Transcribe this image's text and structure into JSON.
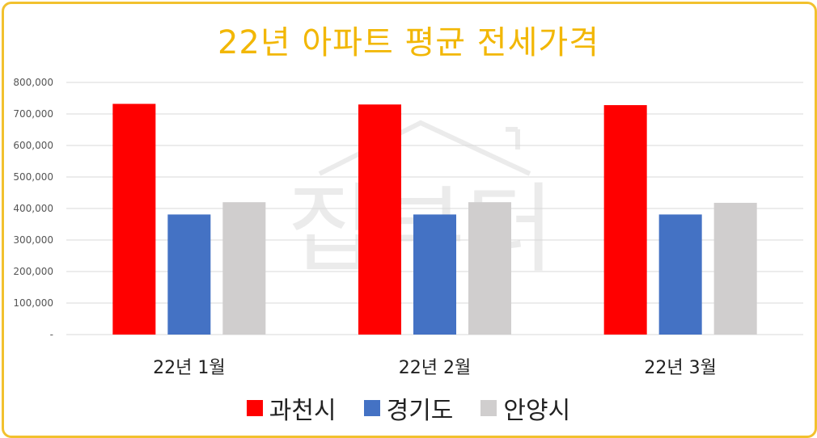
{
  "chart_data": {
    "type": "bar",
    "title": "22년 아파트 평균 전세가격",
    "categories": [
      "22년 1월",
      "22년 2월",
      "22년 3월"
    ],
    "series": [
      {
        "name": "과천시",
        "color": "#ff0000",
        "values": [
          732000,
          730000,
          728000
        ]
      },
      {
        "name": "경기도",
        "color": "#4472c4",
        "values": [
          381000,
          381000,
          381000
        ]
      },
      {
        "name": "안양시",
        "color": "#d0cece",
        "values": [
          420000,
          420000,
          418000
        ]
      }
    ],
    "ylim": [
      0,
      800000
    ],
    "yticks": [
      "-",
      "100,000",
      "200,000",
      "300,000",
      "400,000",
      "500,000",
      "600,000",
      "700,000",
      "800,000"
    ],
    "grid": true,
    "legend_position": "bottom"
  },
  "watermark": "집부터"
}
